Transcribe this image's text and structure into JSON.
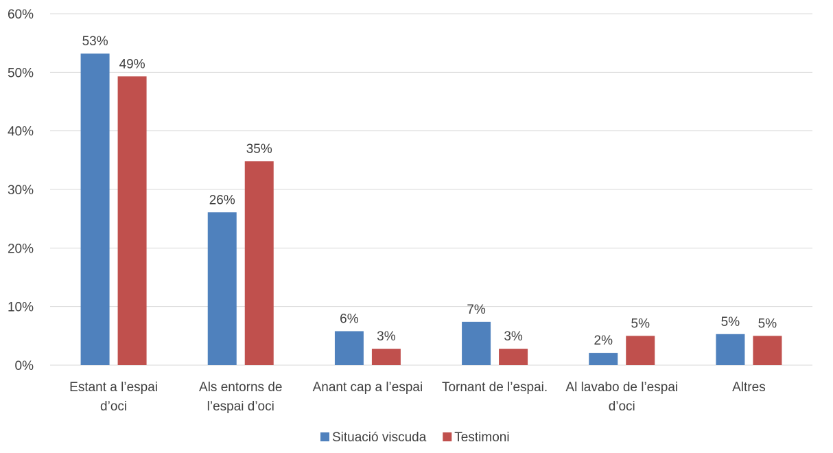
{
  "chart_data": {
    "type": "bar",
    "categories": [
      [
        "Estant a l’espai",
        "d’oci"
      ],
      [
        "Als entorns de",
        "l’espai d’oci"
      ],
      [
        "Anant cap a l’espai"
      ],
      [
        "Tornant de l’espai."
      ],
      [
        "Al lavabo de l’espai",
        "d’oci"
      ],
      [
        "Altres"
      ]
    ],
    "series": [
      {
        "name": "Situació viscuda",
        "color": "#4f81bd",
        "values": [
          53.2,
          26.1,
          5.8,
          7.4,
          2.1,
          5.3
        ],
        "labels": [
          "53%",
          "26%",
          "6%",
          "7%",
          "2%",
          "5%"
        ]
      },
      {
        "name": "Testimoni",
        "color": "#c0504d",
        "values": [
          49.3,
          34.8,
          2.8,
          2.8,
          5.0,
          5.0
        ],
        "labels": [
          "49%",
          "35%",
          "3%",
          "3%",
          "5%",
          "5%"
        ]
      }
    ],
    "yticks": [
      "0%",
      "10%",
      "20%",
      "30%",
      "40%",
      "50%",
      "60%"
    ],
    "ylim": [
      0,
      60
    ],
    "title": "",
    "xlabel": "",
    "ylabel": "",
    "grid": true,
    "legend": "bottom-center"
  }
}
